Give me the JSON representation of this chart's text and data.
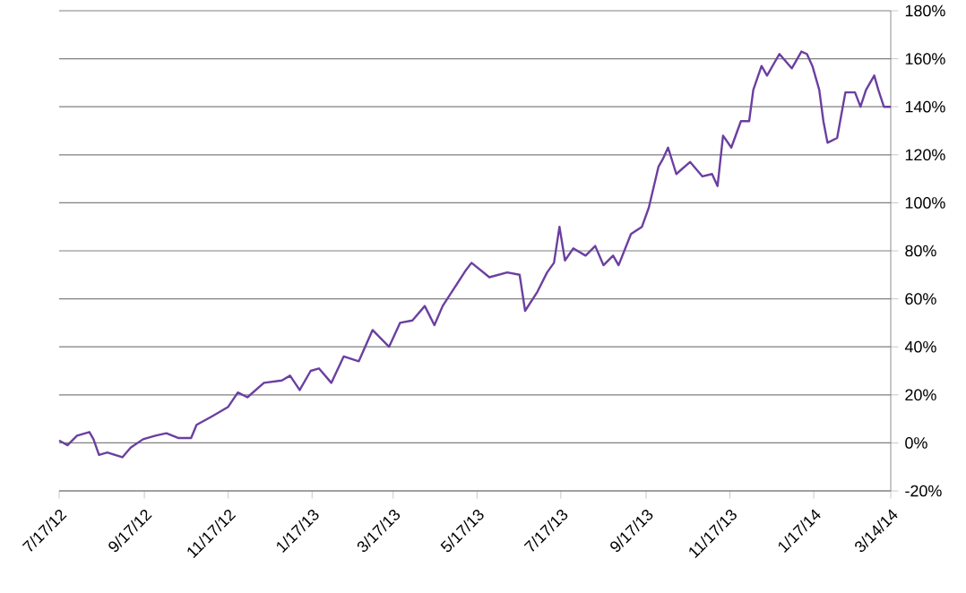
{
  "chart_data": {
    "type": "line",
    "color": "#6b3fa0",
    "grid": "y",
    "line_style": "solid",
    "x": [
      "2012-07-17",
      "2012-07-23",
      "2012-07-30",
      "2012-08-08",
      "2012-08-11",
      "2012-08-15",
      "2012-08-21",
      "2012-09-01",
      "2012-09-07",
      "2012-09-16",
      "2012-09-25",
      "2012-10-03",
      "2012-10-12",
      "2012-10-21",
      "2012-10-25",
      "2012-11-05",
      "2012-11-17",
      "2012-11-24",
      "2012-12-01",
      "2012-12-13",
      "2012-12-26",
      "2013-01-01",
      "2013-01-08",
      "2013-01-16",
      "2013-01-22",
      "2013-01-31",
      "2013-02-09",
      "2013-02-20",
      "2013-03-02",
      "2013-03-14",
      "2013-03-22",
      "2013-03-31",
      "2013-04-09",
      "2013-04-16",
      "2013-04-22",
      "2013-05-09",
      "2013-05-13",
      "2013-05-26",
      "2013-06-08",
      "2013-06-17",
      "2013-06-21",
      "2013-06-30",
      "2013-07-07",
      "2013-07-12",
      "2013-07-16",
      "2013-07-20",
      "2013-07-26",
      "2013-08-04",
      "2013-08-11",
      "2013-08-17",
      "2013-08-24",
      "2013-08-28",
      "2013-09-06",
      "2013-09-14",
      "2013-09-19",
      "2013-09-26",
      "2013-09-29",
      "2013-10-03",
      "2013-10-09",
      "2013-10-19",
      "2013-10-28",
      "2013-11-04",
      "2013-11-08",
      "2013-11-12",
      "2013-11-18",
      "2013-11-25",
      "2013-12-01",
      "2013-12-04",
      "2013-12-10",
      "2013-12-14",
      "2013-12-23",
      "2014-01-01",
      "2014-01-08",
      "2014-01-12",
      "2014-01-16",
      "2014-01-21",
      "2014-01-24",
      "2014-01-27",
      "2014-02-03",
      "2014-02-09",
      "2014-02-16",
      "2014-02-20",
      "2014-02-24",
      "2014-03-02",
      "2014-03-05",
      "2014-03-09",
      "2014-03-14"
    ],
    "values": [
      1,
      -1,
      3,
      4.5,
      1.5,
      -5,
      -4,
      -6,
      -2,
      1.5,
      3,
      4,
      2,
      2,
      7.5,
      11,
      15,
      21,
      19,
      25,
      26,
      28,
      22,
      30,
      31,
      25,
      36,
      34,
      47,
      40,
      50,
      51,
      57,
      49,
      57,
      72,
      75,
      69,
      71,
      70,
      55,
      63,
      71,
      75,
      90,
      76,
      81,
      78,
      82,
      74,
      78,
      74,
      87,
      90,
      98,
      115,
      118,
      123,
      112,
      117,
      111,
      112,
      107,
      128,
      123,
      134,
      134,
      147,
      157,
      153,
      162,
      156,
      163,
      162,
      157,
      147,
      134,
      125,
      127,
      146,
      146,
      140,
      147,
      153,
      147,
      140,
      140
    ],
    "xlim": [
      "2012-07-17",
      "2014-03-14"
    ],
    "xticks": [
      {
        "value": "2012-07-17",
        "label": "7/17/12"
      },
      {
        "value": "2012-09-17",
        "label": "9/17/12"
      },
      {
        "value": "2012-11-17",
        "label": "11/17/12"
      },
      {
        "value": "2013-01-17",
        "label": "1/17/13"
      },
      {
        "value": "2013-03-17",
        "label": "3/17/13"
      },
      {
        "value": "2013-05-17",
        "label": "5/17/13"
      },
      {
        "value": "2013-07-17",
        "label": "7/17/13"
      },
      {
        "value": "2013-09-17",
        "label": "9/17/13"
      },
      {
        "value": "2013-11-17",
        "label": "11/17/13"
      },
      {
        "value": "2014-01-17",
        "label": "1/17/14"
      },
      {
        "value": "2014-03-14",
        "label": "3/14/14"
      }
    ],
    "ylim": [
      -20,
      180
    ],
    "yticks": [
      {
        "value": -20,
        "label": "-20%"
      },
      {
        "value": 0,
        "label": "0%"
      },
      {
        "value": 20,
        "label": "20%"
      },
      {
        "value": 40,
        "label": "40%"
      },
      {
        "value": 60,
        "label": "60%"
      },
      {
        "value": 80,
        "label": "80%"
      },
      {
        "value": 100,
        "label": "100%"
      },
      {
        "value": 120,
        "label": "120%"
      },
      {
        "value": 140,
        "label": "140%"
      },
      {
        "value": 160,
        "label": "160%"
      },
      {
        "value": 180,
        "label": "180%"
      }
    ]
  }
}
